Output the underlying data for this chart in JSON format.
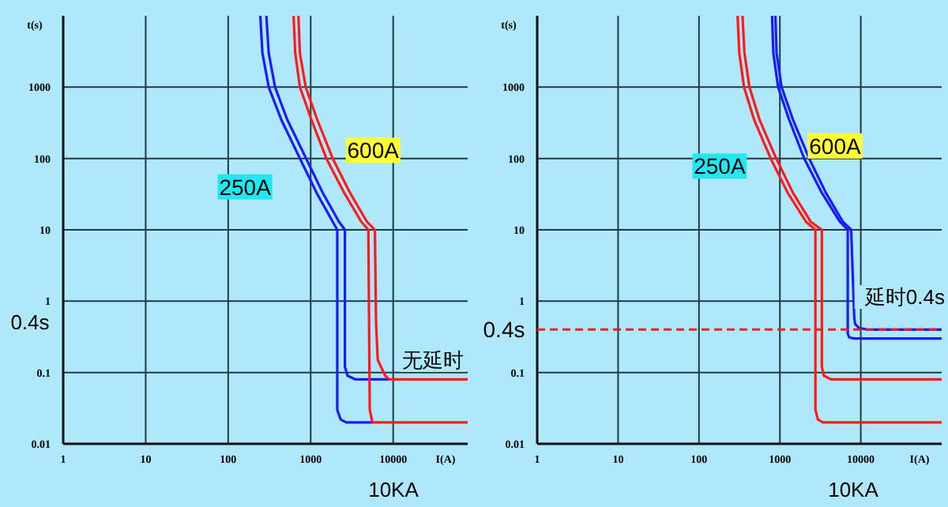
{
  "chart_data": [
    {
      "type": "line",
      "xlabel": "I(A)",
      "ylabel": "t(s)",
      "log": "xy",
      "grid": true,
      "xlim": [
        1,
        80000
      ],
      "ylim": [
        0.01,
        10000
      ],
      "xticks": [
        1,
        10,
        100,
        1000,
        10000
      ],
      "yticks": [
        0.01,
        0.1,
        1,
        10,
        100,
        1000
      ],
      "series": [
        {
          "color": "#1a1aff",
          "x": [
            290,
            310,
            370,
            520,
            880,
            1400,
            2200,
            2600,
            2600,
            2800,
            3500,
            9000
          ],
          "values": [
            10000,
            3000,
            1000,
            350,
            100,
            33,
            13,
            10,
            0.12,
            0.09,
            0.08,
            0.08
          ]
        },
        {
          "color": "#1a1aff",
          "x": [
            245,
            260,
            310,
            440,
            740,
            1180,
            1850,
            2100,
            2100,
            2300,
            2700,
            5600
          ],
          "values": [
            10000,
            3000,
            1000,
            350,
            100,
            33,
            13,
            10,
            0.03,
            0.022,
            0.02,
            0.02
          ]
        },
        {
          "color": "#ff1a1a",
          "x": [
            710,
            740,
            870,
            1200,
            1850,
            3000,
            4800,
            6000,
            6200,
            6500,
            8000,
            9000,
            80000
          ],
          "values": [
            10000,
            3000,
            1000,
            350,
            100,
            33,
            13,
            10,
            0.5,
            0.15,
            0.09,
            0.08,
            0.08
          ]
        },
        {
          "color": "#ff1a1a",
          "x": [
            620,
            650,
            740,
            1020,
            1550,
            2550,
            4100,
            5000,
            5200,
            5600,
            80000
          ],
          "values": [
            10000,
            3000,
            1000,
            350,
            100,
            33,
            13,
            10,
            0.03,
            0.02,
            0.02
          ]
        }
      ],
      "annotations": [
        {
          "text": "250A",
          "x": 160,
          "y": 40
        },
        {
          "text": "600A",
          "x": 5700,
          "y": 130
        },
        "无延时",
        "0.4s",
        "10KA"
      ]
    },
    {
      "type": "line",
      "xlabel": "I(A)",
      "ylabel": "t(s)",
      "log": "xy",
      "grid": true,
      "xlim": [
        1,
        100000
      ],
      "ylim": [
        0.01,
        10000
      ],
      "xticks": [
        1,
        10,
        100,
        1000,
        10000
      ],
      "yticks": [
        0.01,
        0.1,
        1,
        10,
        100,
        1000
      ],
      "series": [
        {
          "color": "#ff1a1a",
          "x": [
            345,
            365,
            420,
            560,
            900,
            1450,
            2400,
            3300,
            3300,
            3500,
            4300,
            100000
          ],
          "values": [
            10000,
            3000,
            1000,
            350,
            100,
            33,
            13,
            10,
            0.12,
            0.09,
            0.08,
            0.08
          ]
        },
        {
          "color": "#ff1a1a",
          "x": [
            300,
            315,
            360,
            480,
            770,
            1250,
            2100,
            2750,
            2750,
            2950,
            3400,
            100000
          ],
          "values": [
            10000,
            3000,
            1000,
            350,
            100,
            33,
            13,
            10,
            0.03,
            0.022,
            0.02,
            0.02
          ]
        },
        {
          "color": "#1a1aff",
          "x": [
            880,
            910,
            1050,
            1450,
            2300,
            3700,
            6000,
            7600,
            8300,
            8500,
            9500,
            12000,
            100000
          ],
          "values": [
            10000,
            3000,
            1000,
            350,
            100,
            33,
            13,
            10,
            0.6,
            0.48,
            0.42,
            0.4,
            0.4
          ]
        },
        {
          "color": "#1a1aff",
          "x": [
            800,
            830,
            950,
            1300,
            2000,
            3300,
            5500,
            6900,
            6900,
            7200,
            8300,
            100000
          ],
          "values": [
            10000,
            3000,
            1000,
            350,
            100,
            33,
            13,
            10,
            0.35,
            0.31,
            0.3,
            0.3
          ]
        }
      ],
      "ref_lines": [
        {
          "axis": "y",
          "value": 0.4,
          "label": "0.4s",
          "color": "#ff1a1a",
          "line_style": "dashed"
        }
      ],
      "annotations": [
        {
          "text": "250A",
          "x": 180,
          "y": 78
        },
        {
          "text": "600A",
          "x": 4800,
          "y": 150
        },
        "延时0.4s",
        "10KA"
      ]
    }
  ]
}
